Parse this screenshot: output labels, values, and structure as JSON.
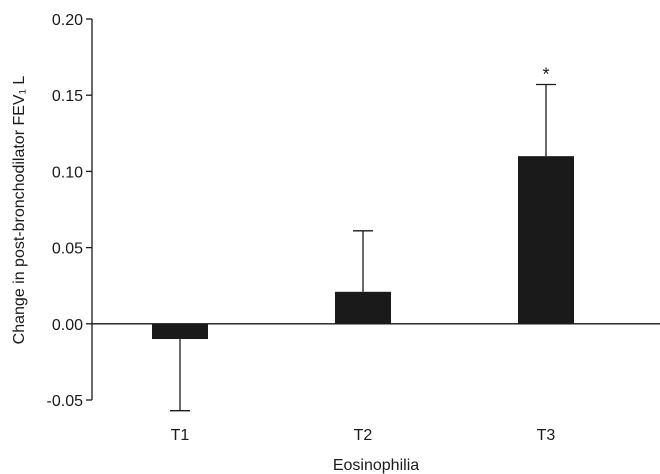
{
  "chart_data": {
    "type": "bar",
    "categories": [
      "T1",
      "T2",
      "T3"
    ],
    "values": [
      -0.01,
      0.021,
      0.11
    ],
    "errors_upper": [
      0,
      0.04,
      0.047
    ],
    "errors_lower": [
      0.047,
      0,
      0
    ],
    "annotations": [
      "",
      "",
      "*"
    ],
    "xlabel": "Eosinophilia",
    "ylabel": "Change in post-bronchodilator FEV₁ L",
    "ylim": [
      -0.05,
      0.2
    ],
    "yticks": [
      -0.05,
      0.0,
      0.05,
      0.1,
      0.15,
      0.2
    ],
    "ytick_labels": [
      "-0.05",
      "0.00",
      "0.05",
      "0.10",
      "0.15",
      "0.20"
    ],
    "bar_color": "#1a1a1a",
    "grid": false,
    "legend": "none"
  }
}
